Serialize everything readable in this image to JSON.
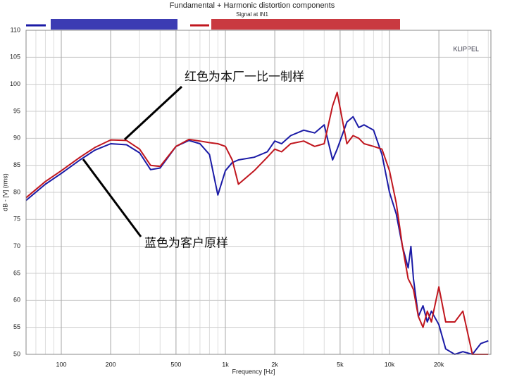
{
  "chart_data": {
    "type": "line",
    "title": "Fundamental + Harmonic distortion components",
    "subtitle": "Signal at IN1",
    "brand": "KLIPPEL",
    "xlabel": "Frequency [Hz]",
    "ylabel": "dB - [V] (rms)",
    "annotations": [
      "红色为本厂一比一制样",
      "蓝色为客户原样"
    ],
    "log_x": true,
    "grid": true,
    "xlim": [
      61,
      41500
    ],
    "ylim": [
      50,
      110
    ],
    "xticks": [
      100,
      200,
      500,
      {
        "value": 1000,
        "label": "1k"
      },
      {
        "value": 2000,
        "label": "2k"
      },
      {
        "value": 5000,
        "label": "5k"
      },
      {
        "value": 10000,
        "label": "10k"
      },
      {
        "value": 20000,
        "label": "20k"
      }
    ],
    "yticks": [
      50,
      55,
      60,
      65,
      70,
      75,
      80,
      85,
      90,
      95,
      100,
      105,
      110
    ],
    "x": [
      61,
      80,
      100,
      130,
      160,
      200,
      250,
      300,
      350,
      400,
      500,
      600,
      700,
      800,
      900,
      1000,
      1100,
      1200,
      1500,
      1800,
      2000,
      2200,
      2500,
      3000,
      3500,
      4000,
      4500,
      4800,
      5500,
      6000,
      6500,
      7000,
      8000,
      9000,
      10000,
      11000,
      12000,
      13000,
      13500,
      14000,
      15000,
      16000,
      17000,
      18000,
      20000,
      22000,
      25000,
      28000,
      32000,
      36000,
      40000
    ],
    "series": [
      {
        "color": "#1a1aa6",
        "values": [
          78.5,
          81.5,
          83.5,
          86,
          87.8,
          89,
          88.8,
          87.3,
          84.2,
          84.5,
          88.5,
          89.6,
          89,
          87,
          79.5,
          84,
          85.5,
          86,
          86.5,
          87.5,
          89.5,
          89,
          90.5,
          91.5,
          91,
          92.5,
          86,
          88,
          93,
          94,
          92,
          92.5,
          91.5,
          87,
          80,
          76,
          70,
          66,
          70,
          64,
          57,
          59,
          56,
          58,
          55.5,
          51,
          50,
          50.5,
          50,
          52,
          52.5
        ]
      },
      {
        "color": "#c0161e",
        "values": [
          79,
          82,
          84,
          86.5,
          88.3,
          89.7,
          89.6,
          88,
          85,
          84.8,
          88.5,
          89.8,
          89.5,
          89.2,
          89,
          88.5,
          86,
          81.5,
          84,
          86.5,
          88,
          87.5,
          89,
          89.5,
          88.5,
          89,
          96,
          98.5,
          89,
          90.5,
          90,
          89,
          88.5,
          88,
          84,
          78,
          70,
          64,
          63,
          62,
          57,
          55,
          58,
          56,
          62.5,
          56,
          56,
          58,
          50,
          50,
          50
        ]
      }
    ]
  }
}
